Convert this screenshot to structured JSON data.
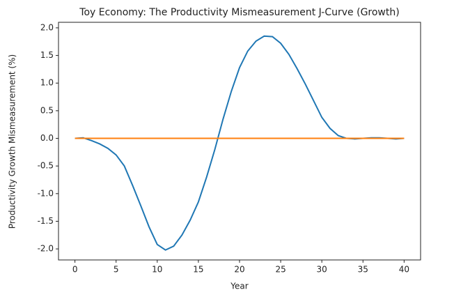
{
  "chart_data": {
    "type": "line",
    "title": "Toy Economy: The Productivity Mismeasurement J-Curve (Growth)",
    "xlabel": "Year",
    "ylabel": "Productivity Growth Mismeasurement (%)",
    "x": [
      0,
      1,
      2,
      3,
      4,
      5,
      6,
      7,
      8,
      9,
      10,
      11,
      12,
      13,
      14,
      15,
      16,
      17,
      18,
      19,
      20,
      21,
      22,
      23,
      24,
      25,
      26,
      27,
      28,
      29,
      30,
      31,
      32,
      33,
      34,
      35,
      36,
      37,
      38,
      39,
      40
    ],
    "series": [
      {
        "color": "#1f77b4",
        "values": [
          0,
          0.01,
          -0.04,
          -0.1,
          -0.18,
          -0.3,
          -0.5,
          -0.85,
          -1.22,
          -1.6,
          -1.92,
          -2.02,
          -1.95,
          -1.75,
          -1.48,
          -1.15,
          -0.7,
          -0.2,
          0.35,
          0.85,
          1.28,
          1.58,
          1.76,
          1.85,
          1.84,
          1.72,
          1.52,
          1.26,
          0.98,
          0.68,
          0.38,
          0.18,
          0.05,
          0.0,
          -0.01,
          0.0,
          0.01,
          0.01,
          0.0,
          -0.01,
          0.0
        ]
      },
      {
        "color": "#ff7f0e",
        "values": [
          0,
          0,
          0,
          0,
          0,
          0,
          0,
          0,
          0,
          0,
          0,
          0,
          0,
          0,
          0,
          0,
          0,
          0,
          0,
          0,
          0,
          0,
          0,
          0,
          0,
          0,
          0,
          0,
          0,
          0,
          0,
          0,
          0,
          0,
          0,
          0,
          0,
          0,
          0,
          0,
          0
        ]
      }
    ],
    "xlim": [
      -2,
      42
    ],
    "ylim": [
      -2.2,
      2.1
    ],
    "xticks": [
      0,
      5,
      10,
      15,
      20,
      25,
      30,
      35,
      40
    ],
    "yticks": [
      {
        "value": -2,
        "label": "-2.0"
      },
      {
        "value": -1.5,
        "label": "-1.5"
      },
      {
        "value": -1,
        "label": "-1.0"
      },
      {
        "value": -0.5,
        "label": "-0.5"
      },
      {
        "value": 0,
        "label": "0.0"
      },
      {
        "value": 0.5,
        "label": "0.5"
      },
      {
        "value": 1,
        "label": "1.0"
      },
      {
        "value": 1.5,
        "label": "1.5"
      },
      {
        "value": 2,
        "label": "2.0"
      }
    ]
  }
}
